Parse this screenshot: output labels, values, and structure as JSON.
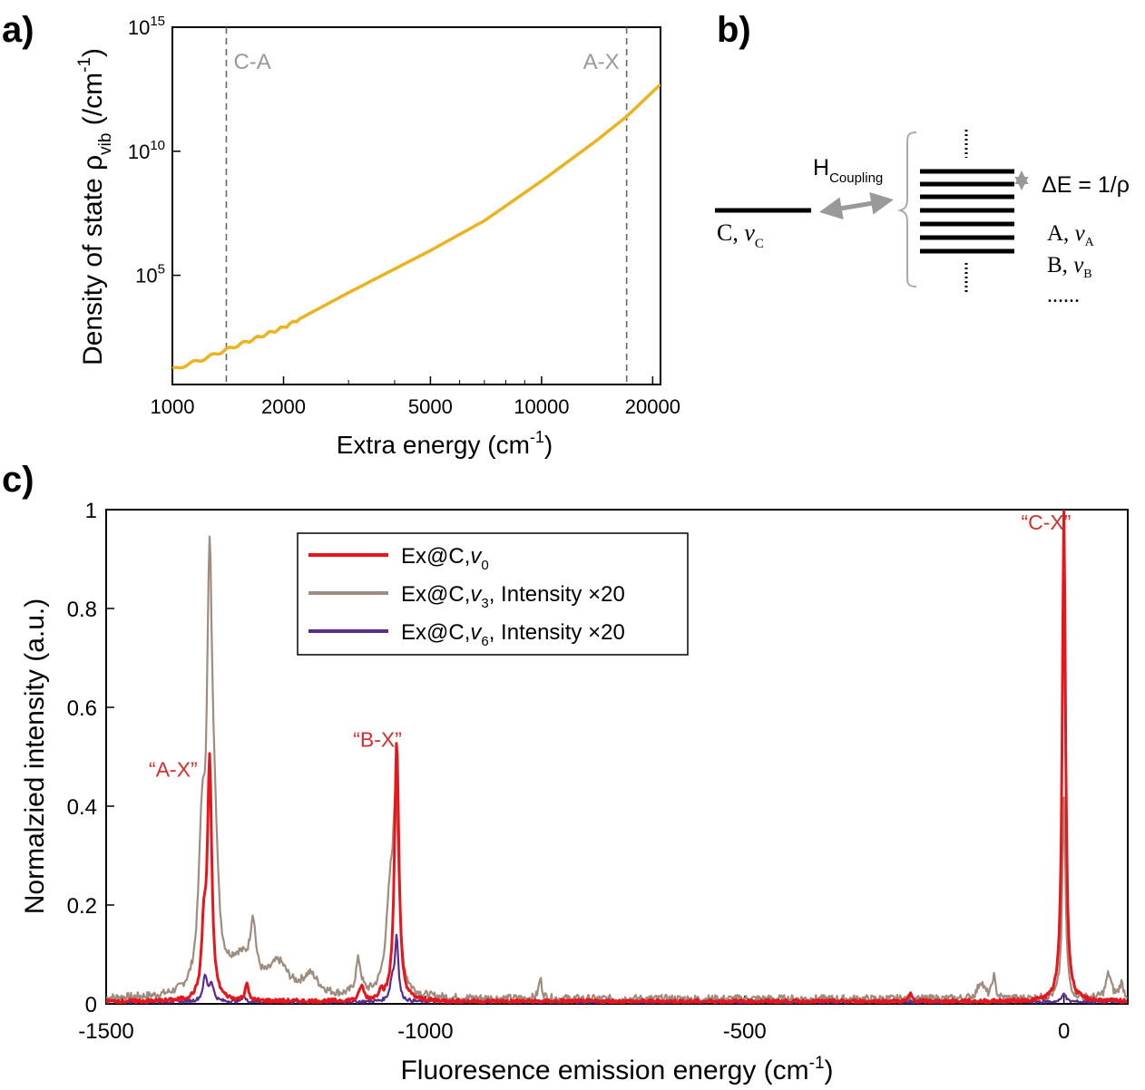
{
  "panels": {
    "a": "a)",
    "b": "b)",
    "c": "c)"
  },
  "chart_data": [
    {
      "id": "a",
      "type": "line",
      "xscale": "log",
      "yscale": "log",
      "xlabel_main": "Extra energy (cm",
      "xlabel_sup": "-1",
      "xlabel_end": ")",
      "ylabel_main": "Density of state ρ",
      "ylabel_sub": "vib",
      "ylabel_mid": " (/cm",
      "ylabel_sup": "-1",
      "ylabel_end": ")",
      "xlim": [
        1000,
        21000
      ],
      "ylim_exp": [
        0.6,
        15
      ],
      "x_ticks": [
        1000,
        2000,
        5000,
        10000,
        20000
      ],
      "x_tick_labels": [
        "1000",
        "2000",
        "5000",
        "10000",
        "20000"
      ],
      "y_ticks_exp": [
        5,
        10,
        15
      ],
      "y_tick_base": "10",
      "y_tick_exps": [
        "5",
        "10",
        "15"
      ],
      "vlines": [
        {
          "x": 1400,
          "label": "C-A",
          "color": "#999999"
        },
        {
          "x": 17000,
          "label": "A-X",
          "color": "#999999"
        }
      ],
      "series": [
        {
          "name": "rho_vib",
          "color": "#EBB31D",
          "x": [
            1000,
            1200,
            1400,
            2000,
            3000,
            5000,
            7000,
            10000,
            14000,
            17000,
            21000
          ],
          "y_log10": [
            1.2,
            1.6,
            2.0,
            2.9,
            4.3,
            6.0,
            7.2,
            8.8,
            10.4,
            11.4,
            12.7
          ]
        }
      ]
    },
    {
      "id": "c",
      "type": "line",
      "xlabel_main": "Fluoresence emission energy (cm",
      "xlabel_sup": "-1",
      "xlabel_end": ")",
      "ylabel": "Normalzied intensity (a.u.)",
      "xlim": [
        -1500,
        100
      ],
      "ylim": [
        0,
        1
      ],
      "x_ticks": [
        -1500,
        -1000,
        -500,
        0
      ],
      "x_tick_labels": [
        "-1500",
        "-1000",
        "-500",
        "0"
      ],
      "y_ticks": [
        0,
        0.2,
        0.4,
        0.6,
        0.8,
        1
      ],
      "y_tick_labels": [
        "0",
        "0.2",
        "0.4",
        "0.6",
        "0.8",
        "1"
      ],
      "annotations": [
        {
          "text": "“A-X”",
          "x": -1395,
          "y": 0.46,
          "color": "#D32F2F"
        },
        {
          "text": "“B-X”",
          "x": -1075,
          "y": 0.52,
          "color": "#D32F2F"
        },
        {
          "text": "“C-X”",
          "x": -28,
          "y": 0.96,
          "color": "#D32F2F"
        }
      ],
      "legend": {
        "entries": [
          {
            "label_main": "Ex@C,",
            "label_v": "v",
            "label_sub": "0",
            "label_rest": "",
            "color": "#E8161B"
          },
          {
            "label_main": "Ex@C,",
            "label_v": "v",
            "label_sub": "3",
            "label_rest": ", Intensity ×20",
            "color": "#A08C7E"
          },
          {
            "label_main": "Ex@C,",
            "label_v": "v",
            "label_sub": "6",
            "label_rest": ", Intensity ×20",
            "color": "#5B2C8F"
          }
        ]
      },
      "series": [
        {
          "name": "Ex@C,v0",
          "color": "#E8161B",
          "baseline": 0.005,
          "peaks": [
            [
              -1338,
              0.48,
              4
            ],
            [
              -1347,
              0.13,
              4
            ],
            [
              -1280,
              0.035,
              3
            ],
            [
              -1100,
              0.03,
              4
            ],
            [
              -1045,
              0.53,
              4
            ],
            [
              -1070,
              0.02,
              3
            ],
            [
              -240,
              0.015,
              3
            ],
            [
              0,
              1.0,
              3
            ]
          ]
        },
        {
          "name": "Ex@C,v3 x20",
          "color": "#A08C7E",
          "baseline": 0.01,
          "peaks": [
            [
              -1338,
              0.78,
              5
            ],
            [
              -1350,
              0.28,
              6
            ],
            [
              -1330,
              0.22,
              6
            ],
            [
              -1290,
              0.07,
              25
            ],
            [
              -1270,
              0.11,
              5
            ],
            [
              -1230,
              0.06,
              18
            ],
            [
              -1180,
              0.04,
              15
            ],
            [
              -1105,
              0.07,
              5
            ],
            [
              -1046,
              0.35,
              5
            ],
            [
              -1055,
              0.18,
              8
            ],
            [
              -820,
              0.04,
              3
            ],
            [
              -130,
              0.035,
              6
            ],
            [
              -110,
              0.045,
              3
            ],
            [
              0,
              0.4,
              3
            ],
            [
              70,
              0.05,
              5
            ],
            [
              90,
              0.03,
              4
            ]
          ]
        },
        {
          "name": "Ex@C,v6 x20",
          "color": "#5B2C8F",
          "baseline": 0.004,
          "peaks": [
            [
              -1345,
              0.05,
              4
            ],
            [
              -1335,
              0.035,
              4
            ],
            [
              -1285,
              0.012,
              3
            ],
            [
              -1045,
              0.13,
              3
            ],
            [
              -1052,
              0.04,
              4
            ],
            [
              0,
              0.02,
              3
            ]
          ]
        }
      ]
    }
  ],
  "diagram": {
    "c_label": "C, ",
    "c_v": "v",
    "c_sub": "C",
    "h_main": "H",
    "h_sub": "Coupling",
    "delta_e": "ΔE = 1/ρ",
    "a_label": "A, ",
    "a_v": "v",
    "a_sub": "A",
    "b_label": "B, ",
    "b_v": "v",
    "b_sub": "B",
    "ellipsis": "......",
    "arrow_color": "#999999"
  }
}
